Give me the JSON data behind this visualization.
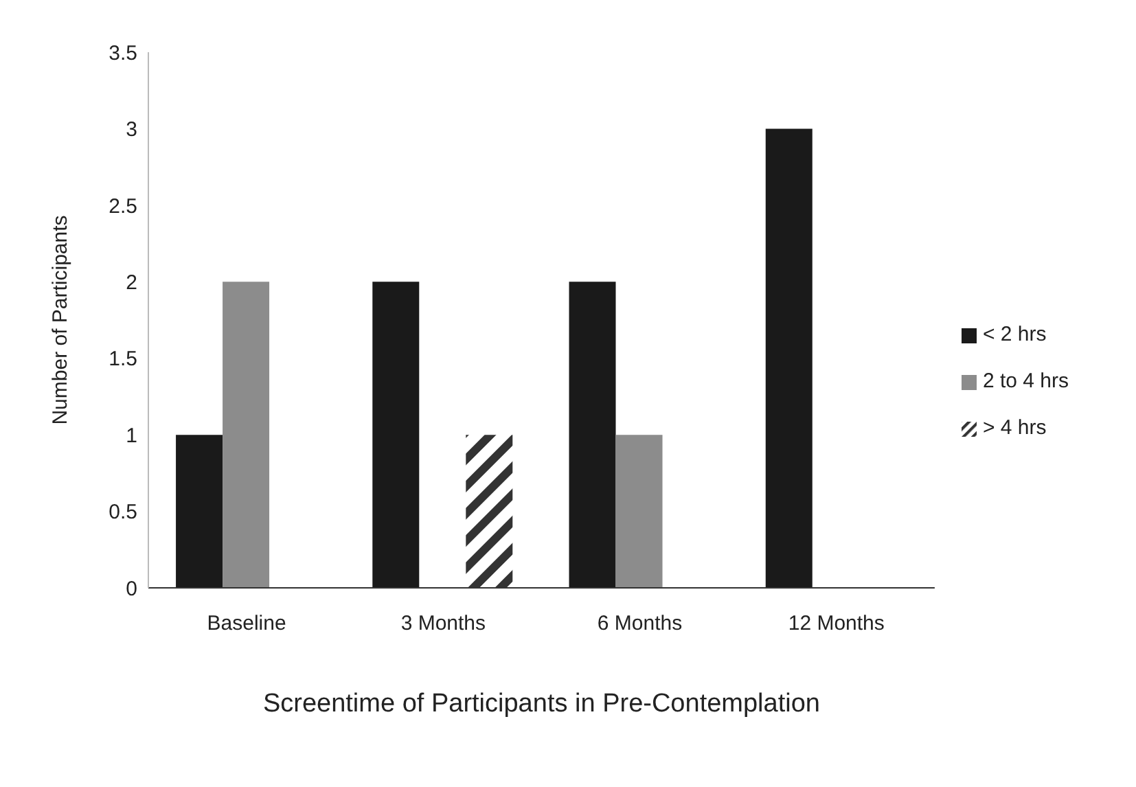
{
  "chart_data": {
    "type": "bar",
    "xlabel": "Screentime of Participants in Pre-Contemplation",
    "ylabel": "Number of Participants",
    "categories": [
      "Baseline",
      "3 Months",
      "6 Months",
      "12 Months"
    ],
    "series": [
      {
        "name": "< 2 hrs",
        "color": "#1a1a1a",
        "values": [
          1,
          2,
          2,
          3
        ]
      },
      {
        "name": "2 to 4 hrs",
        "color": "#8c8c8c",
        "values": [
          2,
          0,
          1,
          0
        ]
      },
      {
        "name": "> 4 hrs",
        "color": "#333333",
        "values": [
          0,
          1,
          0,
          0
        ]
      }
    ],
    "ylim": [
      0,
      3.5
    ],
    "yticks": [
      0,
      0.5,
      1,
      1.5,
      2,
      2.5,
      3,
      3.5
    ],
    "grid": false,
    "legend": "right"
  }
}
